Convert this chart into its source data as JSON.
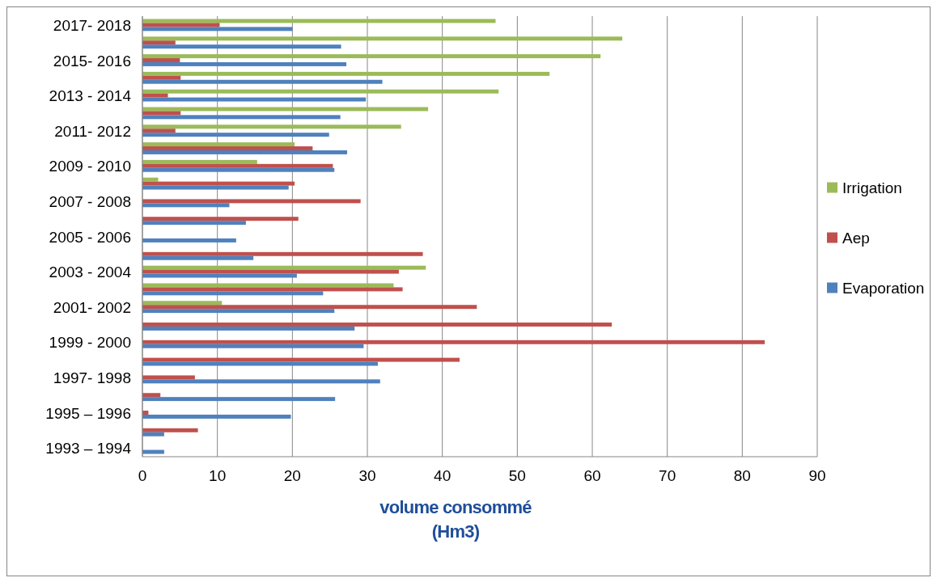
{
  "chart_data": {
    "type": "bar",
    "orientation": "horizontal",
    "xlabel": "volume consommé\n(Hm3)",
    "categories": [
      "2017- 2018",
      null,
      "2015- 2016",
      null,
      "2013 - 2014",
      null,
      "2011- 2012",
      null,
      "2009 - 2010",
      null,
      "2007 - 2008",
      null,
      "2005 - 2006",
      null,
      "2003 - 2004",
      null,
      "2001- 2002",
      null,
      "1999 - 2000",
      null,
      "1997- 1998",
      null,
      "1995 – 1996",
      null,
      "1993 – 1994"
    ],
    "series": [
      {
        "name": "Irrigation",
        "color": "#9bbb59",
        "values": [
          47.1,
          64,
          61.1,
          54.3,
          47.5,
          38.1,
          34.5,
          20.3,
          15.3,
          2.1,
          null,
          null,
          null,
          null,
          37.8,
          33.5,
          10.6,
          null,
          null,
          null,
          null,
          null,
          null,
          null,
          null
        ]
      },
      {
        "name": "Aep",
        "color": "#c0504d",
        "values": [
          10.3,
          4.4,
          5,
          5.1,
          3.4,
          5.1,
          4.4,
          22.7,
          25.4,
          20.3,
          29.1,
          20.8,
          null,
          37.4,
          34.2,
          34.7,
          44.6,
          62.6,
          83,
          42.3,
          7,
          2.4,
          0.8,
          7.4,
          null
        ]
      },
      {
        "name": "Evaporation",
        "color": "#4f81bd",
        "values": [
          20,
          26.5,
          27.2,
          32,
          29.8,
          26.4,
          24.9,
          27.3,
          25.6,
          19.5,
          11.6,
          13.8,
          12.5,
          14.8,
          20.6,
          24.1,
          25.6,
          28.3,
          29.5,
          31.4,
          31.7,
          25.7,
          19.8,
          2.9,
          2.9
        ]
      }
    ],
    "xlim": [
      0,
      90
    ],
    "xticks": [
      0,
      10,
      20,
      30,
      40,
      50,
      60,
      70,
      80,
      90
    ],
    "grid": "x",
    "legend": "right"
  }
}
